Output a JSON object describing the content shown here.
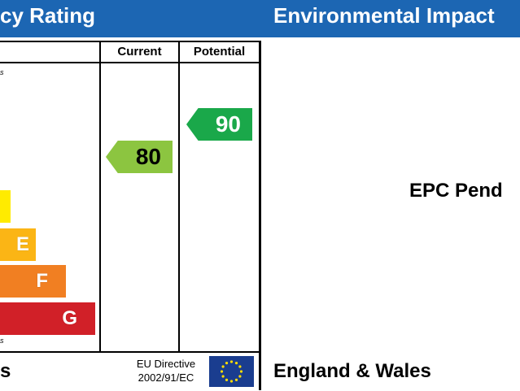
{
  "header": {
    "left_title": "cy Rating",
    "right_title": "Environmental Impact"
  },
  "table": {
    "col_current": "Current",
    "col_potential": "Potential",
    "top_note": "s",
    "bottom_note": "s"
  },
  "bands": [
    {
      "letter": "",
      "color": "#ffeb00"
    },
    {
      "letter": "E",
      "color": "#fbb515"
    },
    {
      "letter": "F",
      "color": "#f17f22"
    },
    {
      "letter": "G",
      "color": "#d12028"
    }
  ],
  "ratings": {
    "current": {
      "value": "80",
      "color": "#8cc540"
    },
    "potential": {
      "value": "90",
      "color": "#1aa84a"
    }
  },
  "environmental": {
    "pending_text": "EPC Pend"
  },
  "footer": {
    "left_label": "s",
    "directive_line1": "EU Directive",
    "directive_line2": "2002/91/EC",
    "region": "England & Wales"
  },
  "icons": {
    "flag": "eu-flag-icon"
  }
}
